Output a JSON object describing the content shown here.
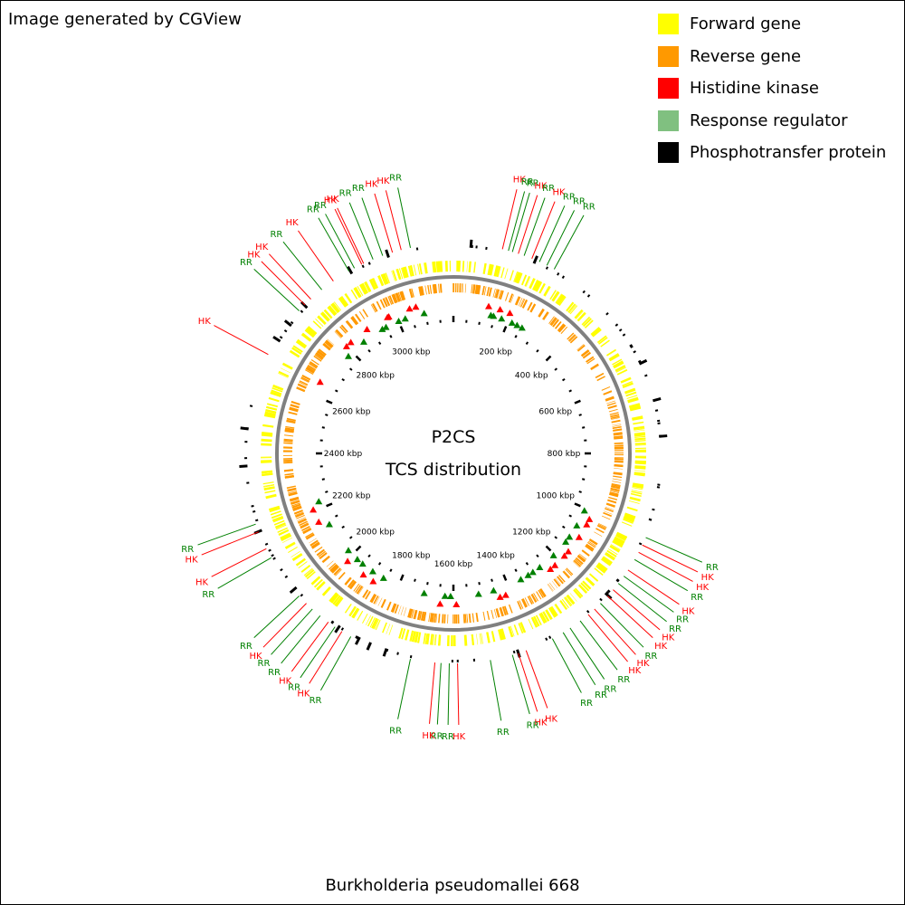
{
  "credit": "Image generated by CGView",
  "legend": [
    {
      "label": "Forward gene",
      "color": "#ffff00"
    },
    {
      "label": "Reverse gene",
      "color": "#ff9900"
    },
    {
      "label": "Histidine kinase",
      "color": "#ff0000"
    },
    {
      "label": "Response regulator",
      "color": "#80c080"
    },
    {
      "label": "Phosphotransfer protein",
      "color": "#000000"
    }
  ],
  "center": {
    "title": "P2CS",
    "subtitle": "TCS distribution"
  },
  "organism": "Burkholderia pseudomallei 668",
  "tick_labels": [
    "200 kbp",
    "400 kbp",
    "600 kbp",
    "800 kbp",
    "1000 kbp",
    "1200 kbp",
    "1400 kbp",
    "1600 kbp",
    "1800 kbp",
    "2000 kbp",
    "2200 kbp",
    "2400 kbp",
    "2600 kbp",
    "2800 kbp",
    "3000 kbp"
  ],
  "colors": {
    "hk": "#ff0000",
    "rr": "#008000",
    "forward": "#ffff00",
    "reverse": "#ff9900",
    "backbone": "#808080"
  },
  "features": [
    {
      "type": "RR",
      "pos_kbp": -250
    },
    {
      "type": "HK",
      "pos_kbp": -230
    },
    {
      "type": "RR",
      "pos_kbp": -200
    },
    {
      "type": "RR",
      "pos_kbp": -175
    },
    {
      "type": "HK",
      "pos_kbp": -150
    },
    {
      "type": "HK",
      "pos_kbp": -128
    },
    {
      "type": "RR",
      "pos_kbp": -105
    },
    {
      "type": "HK",
      "pos_kbp": 120
    },
    {
      "type": "RR",
      "pos_kbp": 135
    },
    {
      "type": "RR",
      "pos_kbp": 145
    },
    {
      "type": "HK",
      "pos_kbp": 160
    },
    {
      "type": "RR",
      "pos_kbp": 175
    },
    {
      "type": "HK",
      "pos_kbp": 195
    },
    {
      "type": "RR",
      "pos_kbp": 215
    },
    {
      "type": "RR",
      "pos_kbp": 235
    },
    {
      "type": "RR",
      "pos_kbp": 255
    },
    {
      "type": "RR",
      "pos_kbp": 1010
    },
    {
      "type": "HK",
      "pos_kbp": 1030
    },
    {
      "type": "HK",
      "pos_kbp": 1050
    },
    {
      "type": "RR",
      "pos_kbp": 1070
    },
    {
      "type": "HK",
      "pos_kbp": 1100
    },
    {
      "type": "RR",
      "pos_kbp": 1118
    },
    {
      "type": "RR",
      "pos_kbp": 1140
    },
    {
      "type": "HK",
      "pos_kbp": 1160
    },
    {
      "type": "HK",
      "pos_kbp": 1180
    },
    {
      "type": "RR",
      "pos_kbp": 1205
    },
    {
      "type": "HK",
      "pos_kbp": 1225
    },
    {
      "type": "HK",
      "pos_kbp": 1245
    },
    {
      "type": "RR",
      "pos_kbp": 1270
    },
    {
      "type": "RR",
      "pos_kbp": 1300
    },
    {
      "type": "RR",
      "pos_kbp": 1320
    },
    {
      "type": "RR",
      "pos_kbp": 1350
    },
    {
      "type": "HK",
      "pos_kbp": 1420
    },
    {
      "type": "HK",
      "pos_kbp": 1440
    },
    {
      "type": "RR",
      "pos_kbp": 1455
    },
    {
      "type": "RR",
      "pos_kbp": 1510
    },
    {
      "type": "HK",
      "pos_kbp": 1590
    },
    {
      "type": "RR",
      "pos_kbp": 1610
    },
    {
      "type": "RR",
      "pos_kbp": 1630
    },
    {
      "type": "HK",
      "pos_kbp": 1645
    },
    {
      "type": "RR",
      "pos_kbp": 1705
    },
    {
      "type": "RR",
      "pos_kbp": 1860
    },
    {
      "type": "HK",
      "pos_kbp": 1885
    },
    {
      "type": "RR",
      "pos_kbp": 1905
    },
    {
      "type": "HK",
      "pos_kbp": 1925
    },
    {
      "type": "RR",
      "pos_kbp": 1950
    },
    {
      "type": "RR",
      "pos_kbp": 1975
    },
    {
      "type": "HK",
      "pos_kbp": 1995
    },
    {
      "type": "RR",
      "pos_kbp": 2020
    },
    {
      "type": "RR",
      "pos_kbp": 2135
    },
    {
      "type": "HK",
      "pos_kbp": 2160
    },
    {
      "type": "HK",
      "pos_kbp": 2205
    },
    {
      "type": "RR",
      "pos_kbp": 2225
    },
    {
      "type": "HK",
      "pos_kbp": 2650
    },
    {
      "type": "RR",
      "pos_kbp": 2780
    },
    {
      "type": "HK",
      "pos_kbp": 2800
    },
    {
      "type": "HK",
      "pos_kbp": 2820
    },
    {
      "type": "RR",
      "pos_kbp": 2855
    },
    {
      "type": "HK",
      "pos_kbp": 2890
    },
    {
      "type": "RR",
      "pos_kbp": 2935
    },
    {
      "type": "HK",
      "pos_kbp": 2975
    }
  ]
}
